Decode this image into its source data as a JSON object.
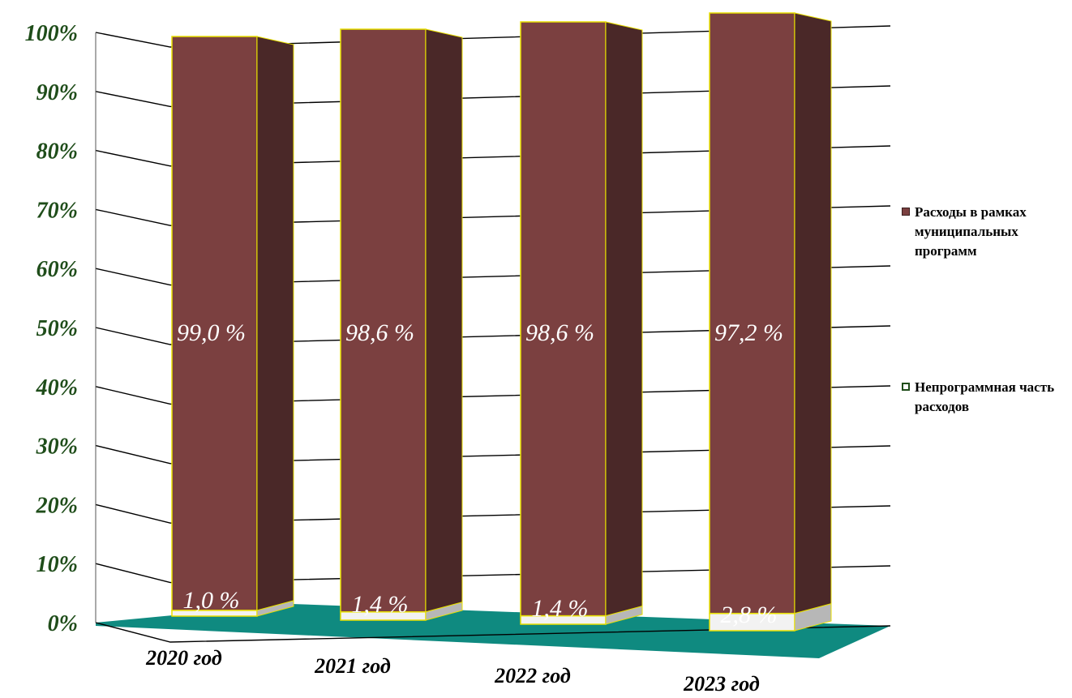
{
  "chart_data": {
    "type": "bar",
    "stacked": true,
    "percent_stacked": true,
    "three_d": true,
    "categories": [
      "2020 год",
      "2021 год",
      "2022 год",
      "2023 год"
    ],
    "series": [
      {
        "name": "Расходы в рамках муниципальных программ",
        "values": [
          99.0,
          98.6,
          98.6,
          97.2
        ],
        "labels": [
          "99,0 %",
          "98,6 %",
          "98,6 %",
          "97,2 %"
        ],
        "color": "#7b4040",
        "side_color": "#4a2828"
      },
      {
        "name": "Непрограммная часть расходов",
        "values": [
          1.0,
          1.4,
          1.4,
          2.8
        ],
        "labels": [
          "1,0 %",
          "1,4 %",
          "1,4 %",
          "2,8 %"
        ],
        "color": "#f2f2f2",
        "side_color": "#b7b7b7"
      }
    ],
    "yticks": [
      "0%",
      "10%",
      "20%",
      "30%",
      "40%",
      "50%",
      "60%",
      "70%",
      "80%",
      "90%",
      "100%"
    ],
    "ylim": [
      0,
      100
    ],
    "grid": true,
    "legend": "right",
    "colors": {
      "floor": "#0f8a80",
      "bar_outline": "#e8e000",
      "tick_label": "#1f4d1a",
      "grid": "#000000"
    }
  }
}
